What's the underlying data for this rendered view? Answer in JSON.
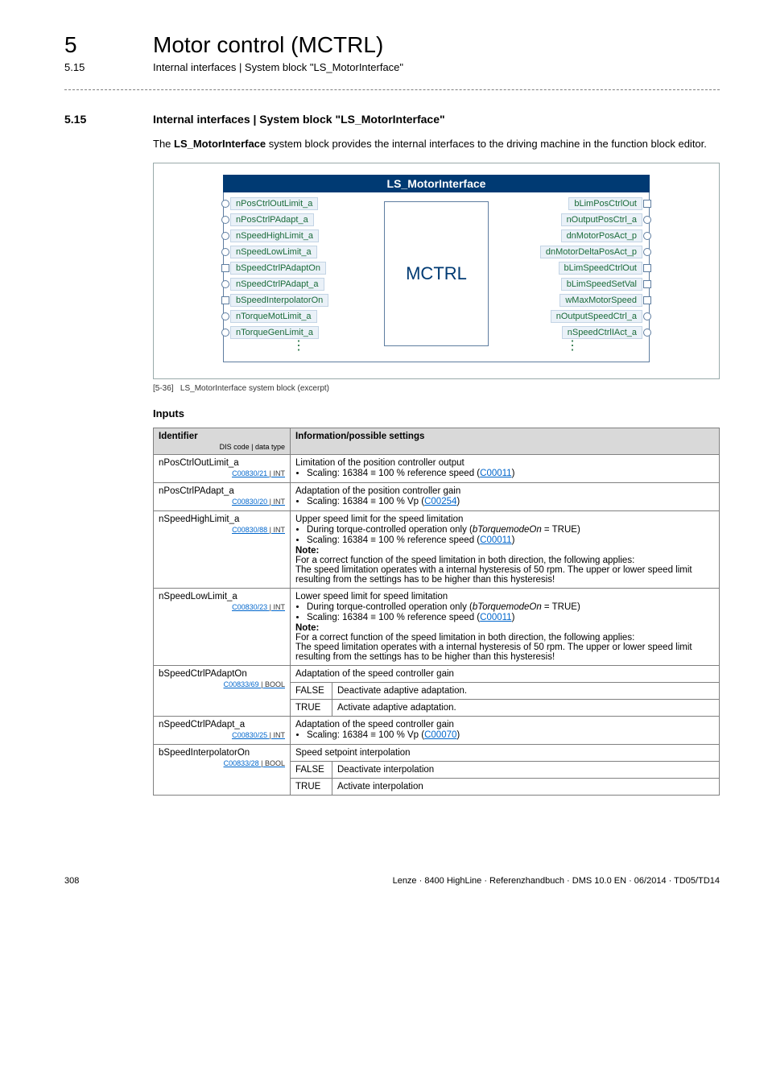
{
  "header": {
    "chapter_num": "5",
    "chapter_title": "Motor control (MCTRL)",
    "section_num_top": "5.15",
    "section_title_top": "Internal interfaces | System block \"LS_MotorInterface\""
  },
  "section": {
    "num": "5.15",
    "title": "Internal interfaces | System block \"LS_MotorInterface\"",
    "intro_pre": "The ",
    "intro_bold": "LS_MotorInterface",
    "intro_post": " system block provides the internal interfaces to the driving machine in the function block editor."
  },
  "diagram": {
    "title": "LS_MotorInterface",
    "center": "MCTRL",
    "inputs": [
      {
        "label": "nPosCtrlOutLimit_a",
        "shape": "circle"
      },
      {
        "label": "nPosCtrlPAdapt_a",
        "shape": "circle"
      },
      {
        "label": "nSpeedHighLimit_a",
        "shape": "circle"
      },
      {
        "label": "nSpeedLowLimit_a",
        "shape": "circle"
      },
      {
        "label": "bSpeedCtrlPAdaptOn",
        "shape": "square"
      },
      {
        "label": "nSpeedCtrlPAdapt_a",
        "shape": "circle"
      },
      {
        "label": "bSpeedInterpolatorOn",
        "shape": "square"
      },
      {
        "label": "nTorqueMotLimit_a",
        "shape": "circle"
      },
      {
        "label": "nTorqueGenLimit_a",
        "shape": "circle"
      }
    ],
    "outputs": [
      {
        "label": "bLimPosCtrlOut",
        "shape": "square"
      },
      {
        "label": "nOutputPosCtrl_a",
        "shape": "circle"
      },
      {
        "label": "dnMotorPosAct_p",
        "shape": "circle"
      },
      {
        "label": "dnMotorDeltaPosAct_p",
        "shape": "circle"
      },
      {
        "label": "bLimSpeedCtrlOut",
        "shape": "square"
      },
      {
        "label": "bLimSpeedSetVal",
        "shape": "square"
      },
      {
        "label": "wMaxMotorSpeed",
        "shape": "square"
      },
      {
        "label": "nOutputSpeedCtrl_a",
        "shape": "circle"
      },
      {
        "label": "nSpeedCtrlIAct_a",
        "shape": "circle"
      }
    ]
  },
  "caption": {
    "num": "[5-36]",
    "text": "LS_MotorInterface system block (excerpt)"
  },
  "inputs_heading": "Inputs",
  "table": {
    "header_col1": "Identifier",
    "header_col1_sub": "DIS code | data type",
    "header_col2": "Information/possible settings"
  },
  "rows": {
    "r1": {
      "name": "nPosCtrlOutLimit_a",
      "code": "C00830/21",
      "type": "INT",
      "line1": "Limitation of the position controller output",
      "bullet1_pre": "Scaling: 16384 ≡ 100 % reference speed (",
      "bullet1_link": "C00011",
      "bullet1_post": ")"
    },
    "r2": {
      "name": "nPosCtrlPAdapt_a",
      "code": "C00830/20",
      "type": "INT",
      "line1": "Adaptation of the position controller gain",
      "bullet1_pre": "Scaling: 16384 ≡ 100 % Vp (",
      "bullet1_link": "C00254",
      "bullet1_post": ")"
    },
    "r3": {
      "name": "nSpeedHighLimit_a",
      "code": "C00830/88",
      "type": "INT",
      "line1": "Upper speed limit for the speed limitation",
      "b1_pre": "During torque-controlled operation only (",
      "b1_em": "bTorquemodeOn",
      "b1_post": " = TRUE)",
      "b2_pre": "Scaling: 16384 ≡ 100 % reference speed (",
      "b2_link": "C00011",
      "b2_post": ")",
      "note_label": "Note:",
      "note1": "For a correct function of the speed limitation in both direction, the following applies:",
      "note2": "The speed limitation operates with a internal hysteresis of 50 rpm. The upper or lower speed limit resulting from the settings has to be higher than this hysteresis!"
    },
    "r4": {
      "name": "nSpeedLowLimit_a",
      "code": "C00830/23",
      "type": "INT",
      "line1": "Lower speed limit for speed limitation",
      "b1_pre": "During torque-controlled operation only (",
      "b1_em": "bTorquemodeOn",
      "b1_post": " = TRUE)",
      "b2_pre": "Scaling: 16384 ≡ 100 % reference speed (",
      "b2_link": "C00011",
      "b2_post": ")",
      "note_label": "Note:",
      "note1": "For a correct function of the speed limitation in both direction, the following applies:",
      "note2": "The speed limitation operates with a internal hysteresis of 50 rpm. The upper or lower speed limit resulting from the settings has to be higher than this hysteresis!"
    },
    "r5": {
      "name": "bSpeedCtrlPAdaptOn",
      "code": "C00833/69 ",
      "type": "BOOL",
      "line1": "Adaptation of the speed controller gain",
      "v_false": "FALSE",
      "d_false": "Deactivate adaptive adaptation.",
      "v_true": "TRUE",
      "d_true": "Activate adaptive adaptation."
    },
    "r6": {
      "name": "nSpeedCtrlPAdapt_a",
      "code": "C00830/25",
      "type": "INT",
      "line1": "Adaptation of the speed controller gain",
      "bullet1_pre": "Scaling: 16384 ≡ 100 % Vp (",
      "bullet1_link": "C00070",
      "bullet1_post": ")"
    },
    "r7": {
      "name": "bSpeedInterpolatorOn",
      "code": "C00833/28 ",
      "type": "BOOL",
      "line1": "Speed setpoint interpolation",
      "v_false": "FALSE",
      "d_false": "Deactivate interpolation",
      "v_true": "TRUE",
      "d_true": "Activate interpolation"
    }
  },
  "footer": {
    "page": "308",
    "right": "Lenze · 8400 HighLine · Referenzhandbuch · DMS 10.0 EN · 06/2014 · TD05/TD14"
  }
}
